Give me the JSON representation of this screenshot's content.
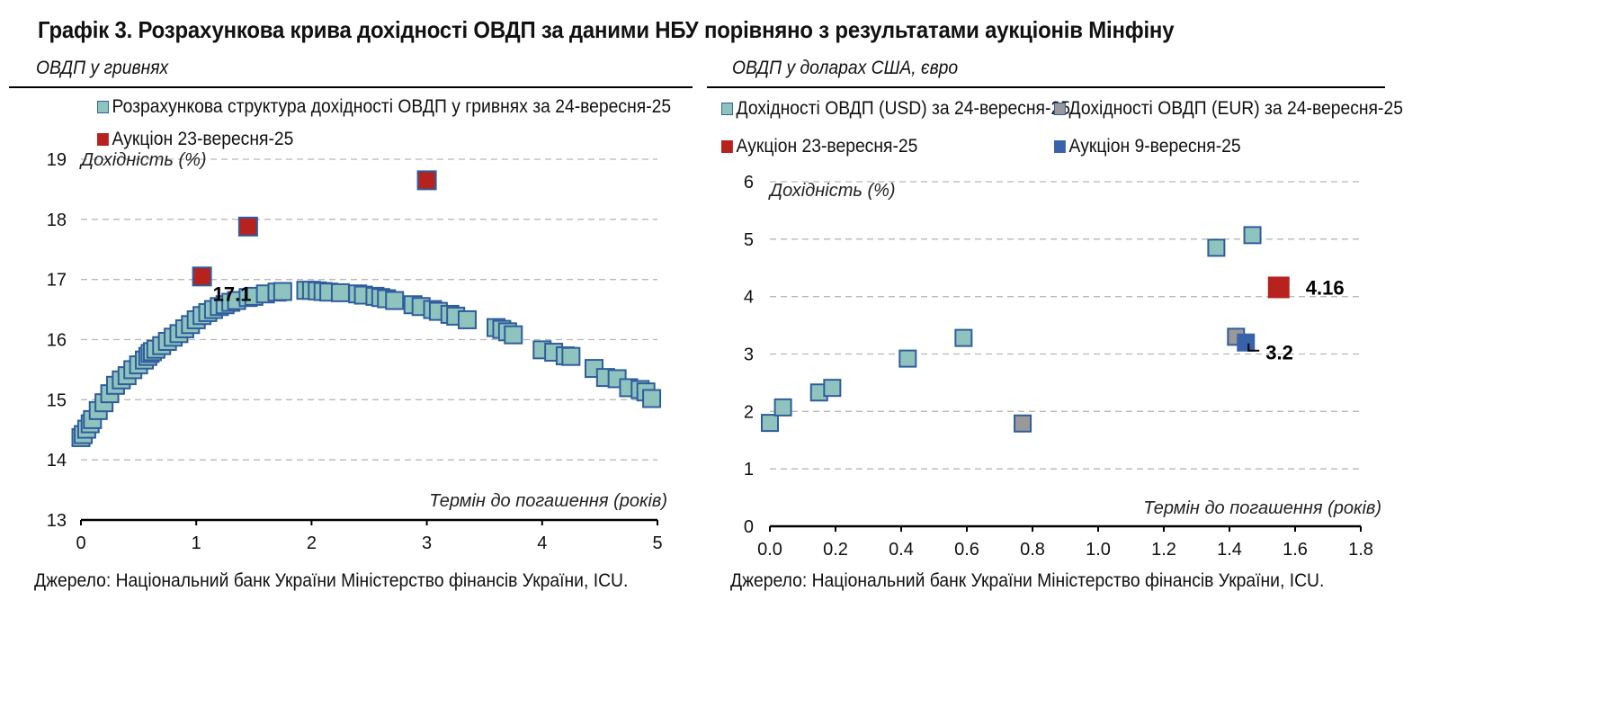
{
  "title": "Графік 3. Розрахункова крива дохідності ОВДП за даними НБУ порівняно з результатами аукціонів Мінфіну",
  "left_panel": {
    "subtitle": "ОВДП у гривнях",
    "source": "Джерело: Національний банк України Міністерство фінансів України, ICU.",
    "legend": [
      {
        "label": "Розрахункова структура дохідності ОВДП у гривнях за 24-вересня-25",
        "color": "#8fc4be"
      },
      {
        "label": "Аукціон 23-вересня-25",
        "color": "#b7221f"
      }
    ]
  },
  "right_panel": {
    "subtitle": "ОВДП у доларах США, євро",
    "source": "Джерело: Національний банк України Міністерство фінансів України, ICU.",
    "legend": [
      {
        "label": "Дохідності ОВДП (USD) за 24-вересня-25",
        "color": "#8fc4be"
      },
      {
        "label": "Дохідності ОВДП (EUR) за 24-вересня-25",
        "color": "#999999"
      },
      {
        "label": "Аукціон 23-вересня-25",
        "color": "#b7221f"
      },
      {
        "label": "Аукціон 9-вересня-25",
        "color": "#3a62aa"
      }
    ]
  },
  "chart_data": [
    {
      "type": "scatter",
      "title": "ОВДП у гривнях",
      "xlabel": "Термін до погашення (років)",
      "ylabel": "Дохідність (%)",
      "xlim": [
        0,
        5
      ],
      "ylim": [
        13,
        19
      ],
      "xticks": [
        "0",
        "1",
        "2",
        "3",
        "4",
        "5"
      ],
      "yticks": [
        "13",
        "14",
        "15",
        "16",
        "17",
        "18",
        "19"
      ],
      "grid": true,
      "legend": "top",
      "colors": {
        "curve_fill": "#8fc4be",
        "curve_stroke": "#2f5d9c",
        "auction_fill": "#b7221f",
        "auction_stroke": "#2f5d9c"
      },
      "series": [
        {
          "name": "Розрахункова структура дохідності ОВДП у гривнях за 24-вересня-25",
          "points": [
            [
              0.0,
              14.37
            ],
            [
              0.02,
              14.42
            ],
            [
              0.05,
              14.51
            ],
            [
              0.08,
              14.6
            ],
            [
              0.1,
              14.67
            ],
            [
              0.15,
              14.82
            ],
            [
              0.2,
              14.95
            ],
            [
              0.25,
              15.1
            ],
            [
              0.3,
              15.24
            ],
            [
              0.35,
              15.33
            ],
            [
              0.4,
              15.4
            ],
            [
              0.45,
              15.5
            ],
            [
              0.5,
              15.58
            ],
            [
              0.55,
              15.66
            ],
            [
              0.58,
              15.72
            ],
            [
              0.6,
              15.77
            ],
            [
              0.62,
              15.8
            ],
            [
              0.65,
              15.84
            ],
            [
              0.7,
              15.9
            ],
            [
              0.75,
              15.97
            ],
            [
              0.8,
              16.04
            ],
            [
              0.85,
              16.1
            ],
            [
              0.9,
              16.18
            ],
            [
              0.95,
              16.25
            ],
            [
              1.0,
              16.33
            ],
            [
              1.05,
              16.4
            ],
            [
              1.1,
              16.45
            ],
            [
              1.15,
              16.5
            ],
            [
              1.2,
              16.55
            ],
            [
              1.25,
              16.58
            ],
            [
              1.3,
              16.62
            ],
            [
              1.35,
              16.65
            ],
            [
              1.45,
              16.7
            ],
            [
              1.5,
              16.72
            ],
            [
              1.6,
              16.76
            ],
            [
              1.7,
              16.79
            ],
            [
              1.75,
              16.8
            ],
            [
              1.95,
              16.82
            ],
            [
              2.0,
              16.82
            ],
            [
              2.05,
              16.81
            ],
            [
              2.1,
              16.8
            ],
            [
              2.15,
              16.79
            ],
            [
              2.25,
              16.78
            ],
            [
              2.4,
              16.76
            ],
            [
              2.45,
              16.74
            ],
            [
              2.55,
              16.72
            ],
            [
              2.6,
              16.7
            ],
            [
              2.65,
              16.68
            ],
            [
              2.72,
              16.65
            ],
            [
              2.88,
              16.58
            ],
            [
              2.95,
              16.55
            ],
            [
              3.05,
              16.5
            ],
            [
              3.1,
              16.47
            ],
            [
              3.2,
              16.42
            ],
            [
              3.25,
              16.39
            ],
            [
              3.35,
              16.33
            ],
            [
              3.6,
              16.2
            ],
            [
              3.65,
              16.17
            ],
            [
              3.7,
              16.13
            ],
            [
              3.75,
              16.08
            ],
            [
              4.0,
              15.83
            ],
            [
              4.1,
              15.79
            ],
            [
              4.2,
              15.73
            ],
            [
              4.25,
              15.72
            ],
            [
              4.45,
              15.52
            ],
            [
              4.55,
              15.37
            ],
            [
              4.65,
              15.35
            ],
            [
              4.75,
              15.2
            ],
            [
              4.85,
              15.17
            ],
            [
              4.9,
              15.13
            ],
            [
              4.95,
              15.02
            ]
          ]
        },
        {
          "name": "Аукціон 23-вересня-25",
          "points": [
            [
              1.05,
              17.05
            ],
            [
              1.45,
              17.88
            ],
            [
              3.0,
              18.65
            ]
          ]
        }
      ],
      "annotations": [
        {
          "text": "17.1",
          "x": 1.05,
          "y": 17.05
        }
      ]
    },
    {
      "type": "scatter",
      "title": "ОВДП у доларах США, євро",
      "xlabel": "Термін до погашення (років)",
      "ylabel": "Дохідність (%)",
      "xlim": [
        0,
        1.8
      ],
      "ylim": [
        0,
        6
      ],
      "xticks": [
        "0.0",
        "0.2",
        "0.4",
        "0.6",
        "0.8",
        "1.0",
        "1.2",
        "1.4",
        "1.6",
        "1.8"
      ],
      "yticks": [
        "0",
        "1",
        "2",
        "3",
        "4",
        "5",
        "6"
      ],
      "grid": true,
      "legend": "top",
      "colors": {
        "usd": "#8fc4be",
        "eur": "#999999",
        "auction_23": "#b7221f",
        "auction_9": "#3a62aa",
        "stroke": "#2f5d9c"
      },
      "series": [
        {
          "name": "Дохідності ОВДП (USD) за 24-вересня-25",
          "points": [
            [
              0.0,
              1.8
            ],
            [
              0.04,
              2.07
            ],
            [
              0.15,
              2.33
            ],
            [
              0.19,
              2.41
            ],
            [
              0.42,
              2.92
            ],
            [
              0.59,
              3.28
            ],
            [
              1.36,
              4.85
            ],
            [
              1.47,
              5.07
            ]
          ]
        },
        {
          "name": "Дохідності ОВДП (EUR) за 24-вересня-25",
          "points": [
            [
              0.77,
              1.79
            ],
            [
              1.42,
              3.3
            ]
          ]
        },
        {
          "name": "Аукціон 23-вересня-25",
          "points": [
            [
              1.55,
              4.16
            ]
          ]
        },
        {
          "name": "Аукціон 9-вересня-25",
          "points": [
            [
              1.45,
              3.2
            ]
          ]
        }
      ],
      "annotations": [
        {
          "text": "4.16",
          "x": 1.55,
          "y": 4.16
        },
        {
          "text": "3.2",
          "x": 1.45,
          "y": 3.2
        }
      ]
    }
  ]
}
